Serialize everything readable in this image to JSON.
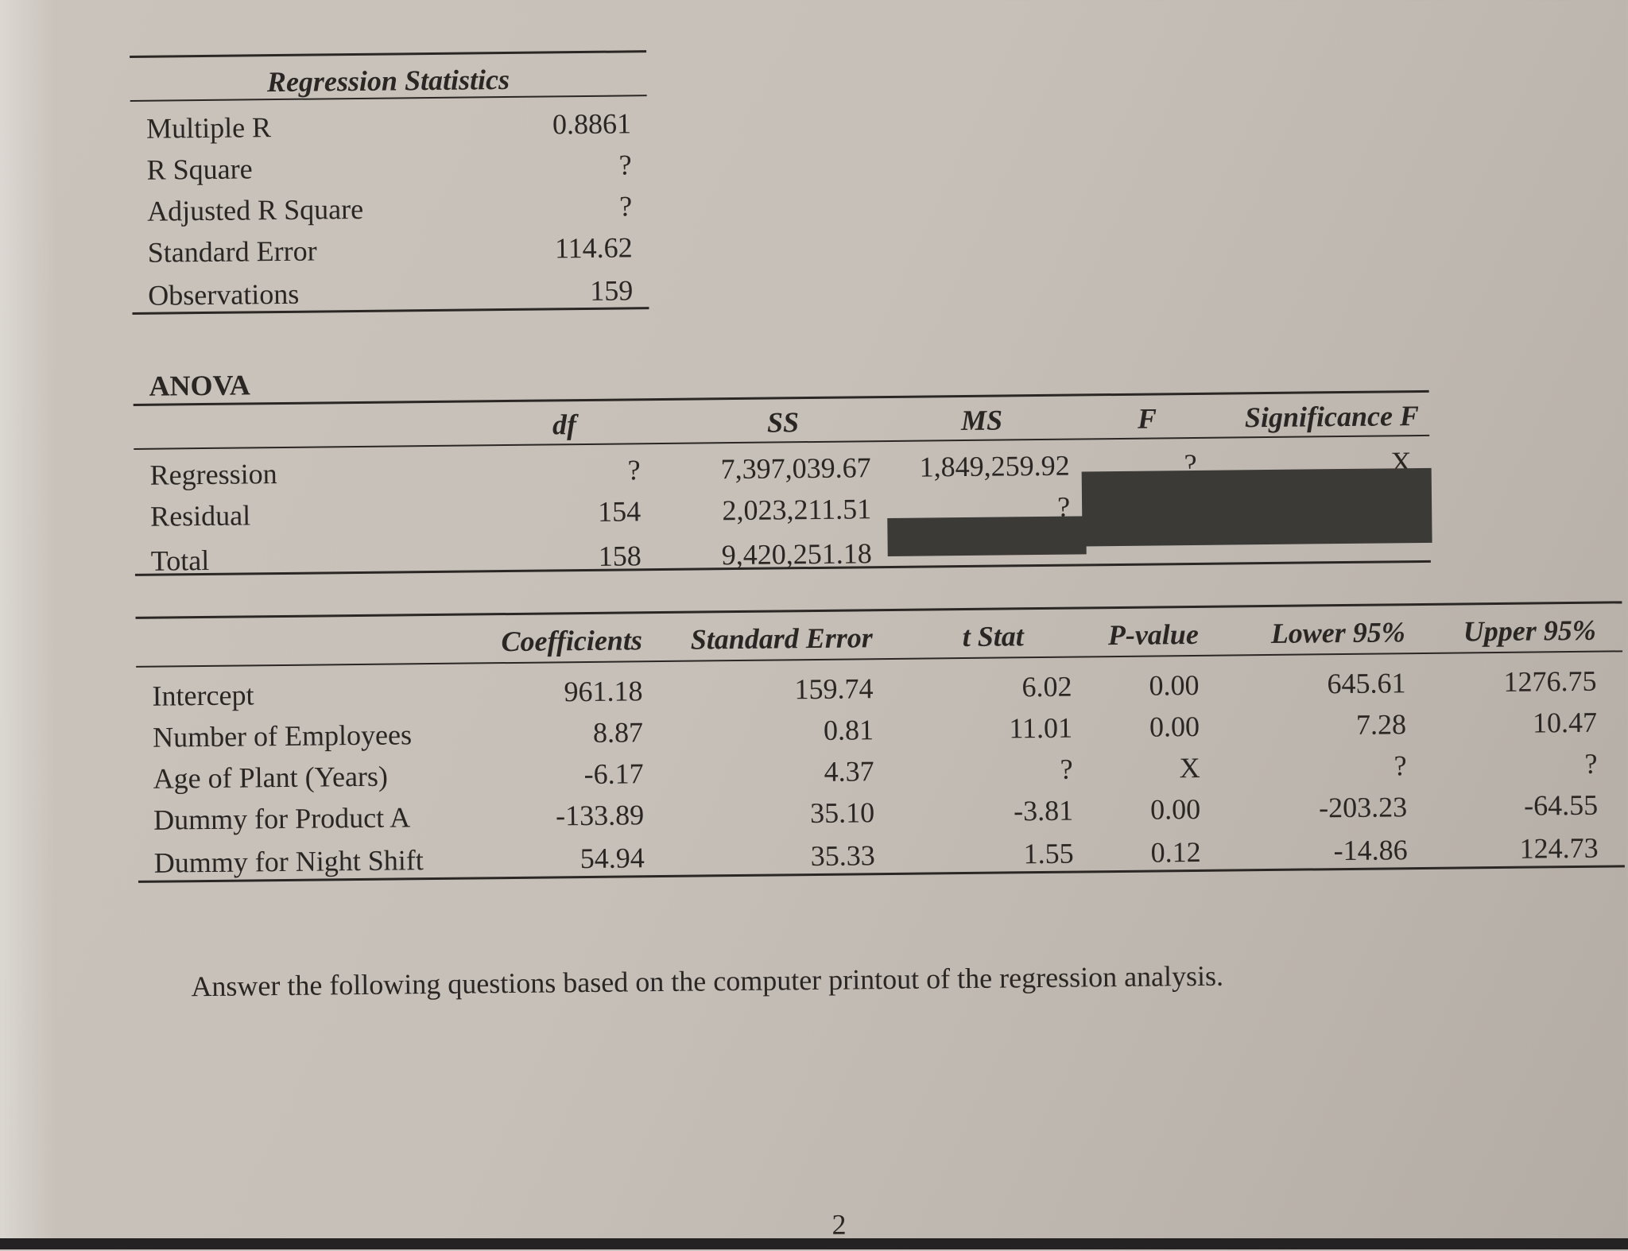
{
  "regression_statistics": {
    "heading": "Regression Statistics",
    "rows": [
      {
        "label": "Multiple R",
        "value": "0.8861"
      },
      {
        "label": "R Square",
        "value": "?"
      },
      {
        "label": "Adjusted R Square",
        "value": "?"
      },
      {
        "label": "Standard Error",
        "value": "114.62"
      },
      {
        "label": "Observations",
        "value": "159"
      }
    ]
  },
  "anova": {
    "title": "ANOVA",
    "headers": [
      "df",
      "SS",
      "MS",
      "F",
      "Significance F"
    ],
    "rows": [
      {
        "label": "Regression",
        "df": "?",
        "ss": "7,397,039.67",
        "ms": "1,849,259.92",
        "f": "?",
        "sig_f": "X"
      },
      {
        "label": "Residual",
        "df": "154",
        "ss": "2,023,211.51",
        "ms": "?"
      },
      {
        "label": "Total",
        "df": "158",
        "ss": "9,420,251.18"
      }
    ]
  },
  "coefficients": {
    "headers": [
      "Coefficients",
      "Standard Error",
      "t Stat",
      "P-value",
      "Lower 95%",
      "Upper 95%"
    ],
    "rows": [
      {
        "label": "Intercept",
        "coef": "961.18",
        "se": "159.74",
        "t": "6.02",
        "p": "0.00",
        "lower": "645.61",
        "upper": "1276.75"
      },
      {
        "label": "Number of Employees",
        "coef": "8.87",
        "se": "0.81",
        "t": "11.01",
        "p": "0.00",
        "lower": "7.28",
        "upper": "10.47"
      },
      {
        "label": "Age of Plant (Years)",
        "coef": "-6.17",
        "se": "4.37",
        "t": "?",
        "p": "X",
        "lower": "?",
        "upper": "?"
      },
      {
        "label": "Dummy for Product A",
        "coef": "-133.89",
        "se": "35.10",
        "t": "-3.81",
        "p": "0.00",
        "lower": "-203.23",
        "upper": "-64.55"
      },
      {
        "label": "Dummy for Night Shift",
        "coef": "54.94",
        "se": "35.33",
        "t": "1.55",
        "p": "0.12",
        "lower": "-14.86",
        "upper": "124.73"
      }
    ]
  },
  "instruction": "Answer the following questions based on the computer printout of the regression analysis.",
  "page_number": "2"
}
